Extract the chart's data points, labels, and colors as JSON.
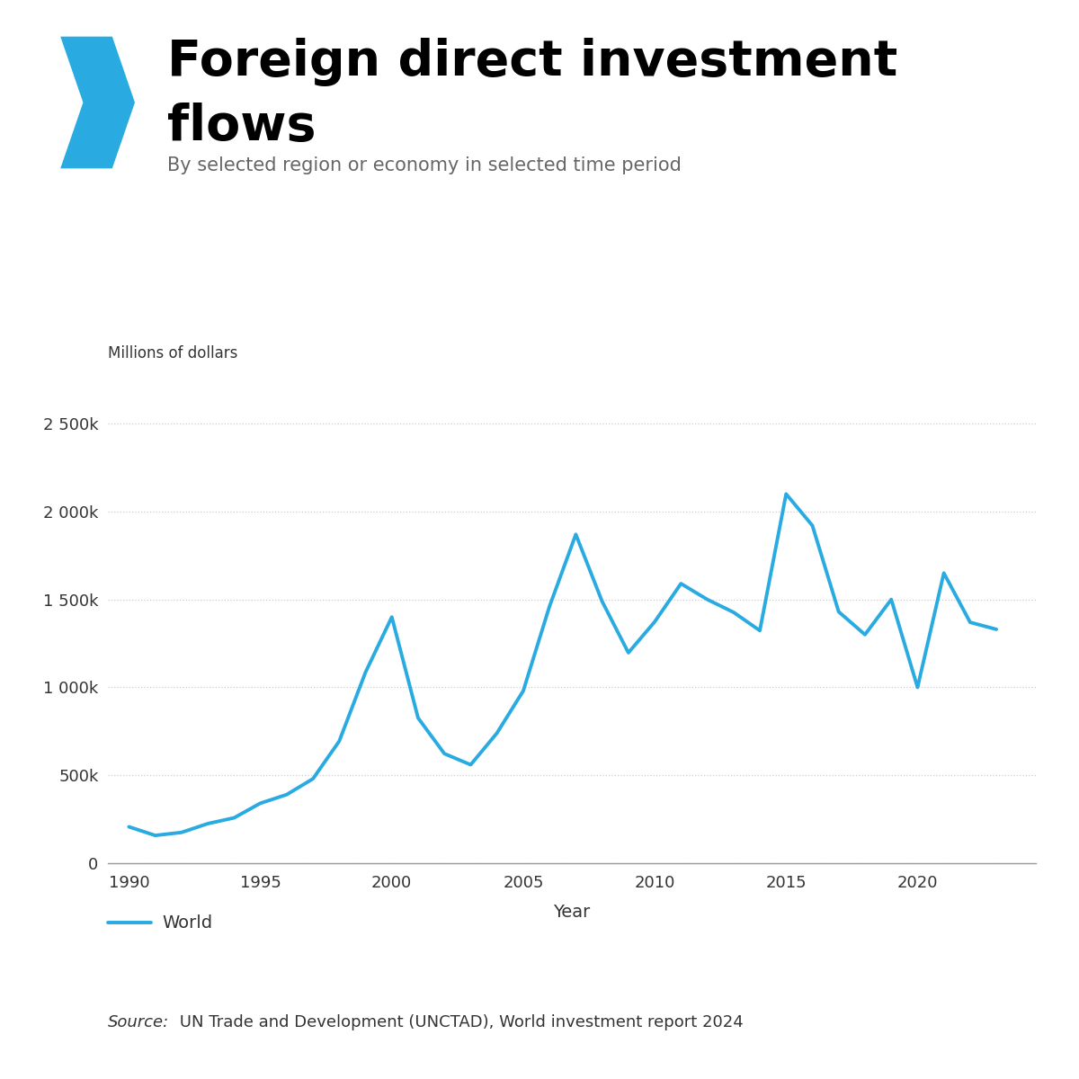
{
  "title_line1": "Foreign direct investment",
  "title_line2": "flows",
  "subtitle": "By selected region or economy in selected time period",
  "ylabel": "Millions of dollars",
  "xlabel": "Year",
  "source_italic": "Source:",
  "source_normal": " UN Trade and Development (UNCTAD), World investment report 2024",
  "legend_label": "World",
  "line_color": "#29ABE2",
  "line_width": 2.8,
  "background_color": "#FFFFFF",
  "years": [
    1990,
    1991,
    1992,
    1993,
    1994,
    1995,
    1996,
    1997,
    1998,
    1999,
    2000,
    2001,
    2002,
    2003,
    2004,
    2005,
    2006,
    2007,
    2008,
    2009,
    2010,
    2011,
    2012,
    2013,
    2014,
    2015,
    2016,
    2017,
    2018,
    2019,
    2020,
    2021,
    2022,
    2023
  ],
  "values": [
    207000,
    158000,
    175000,
    225000,
    258000,
    341000,
    390000,
    480000,
    694000,
    1086000,
    1400000,
    826000,
    623000,
    560000,
    740000,
    980000,
    1461000,
    1870000,
    1489000,
    1197000,
    1373000,
    1590000,
    1500000,
    1427000,
    1323000,
    2100000,
    1920000,
    1430000,
    1300000,
    1500000,
    1000000,
    1650000,
    1370000,
    1330000
  ],
  "ylim": [
    0,
    2700000
  ],
  "yticks": [
    0,
    500000,
    1000000,
    1500000,
    2000000,
    2500000
  ],
  "ytick_labels": [
    "0",
    "500k",
    "1 000k",
    "1 500k",
    "2 000k",
    "2 500k"
  ],
  "xticks": [
    1990,
    1995,
    2000,
    2005,
    2010,
    2015,
    2020
  ],
  "grid_color": "#CCCCCC",
  "title_color": "#000000",
  "subtitle_color": "#666666",
  "tick_color": "#333333",
  "chevron_color": "#29ABE2",
  "axis_color": "#999999"
}
